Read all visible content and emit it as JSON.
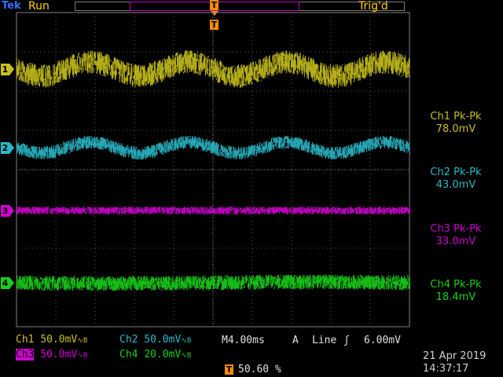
{
  "header": {
    "brand": "Tek",
    "status": "Run",
    "trigger_state": "Trig'd",
    "trigger_marker": "T"
  },
  "channels": [
    {
      "id": "1",
      "name": "Ch1",
      "color": "#c8c01c",
      "scale": "50.0mV",
      "meas_label": "Ch1 Pk-Pk",
      "meas_value": "78.0mV"
    },
    {
      "id": "2",
      "name": "Ch2",
      "color": "#2ab8c8",
      "scale": "50.0mV",
      "meas_label": "Ch2 Pk-Pk",
      "meas_value": "43.0mV"
    },
    {
      "id": "3",
      "name": "Ch3",
      "color": "#d000d0",
      "scale": "50.0mV",
      "meas_label": "Ch3 Pk-Pk",
      "meas_value": "33.0mV"
    },
    {
      "id": "4",
      "name": "Ch4",
      "color": "#1ad01a",
      "scale": "20.0mV",
      "meas_label": "Ch4 Pk-Pk",
      "meas_value": "18.4mV"
    }
  ],
  "bottom": {
    "coupling_symbol": "∿B",
    "timebase": "M4.00ms",
    "trigger_source": "A",
    "trigger_coupling": "Line",
    "trigger_slope": "ʃ",
    "trigger_level": "6.00mV",
    "trigger_position_marker": "T",
    "trigger_position": "50.60 %",
    "date": "21 Apr 2019",
    "time": "14:37:17"
  },
  "colors": {
    "grid": "#5a5a5a",
    "frame": "#808080",
    "status": "#ffd400",
    "brand": "#2f6fff",
    "trigger_marker": "#ff8c00"
  }
}
